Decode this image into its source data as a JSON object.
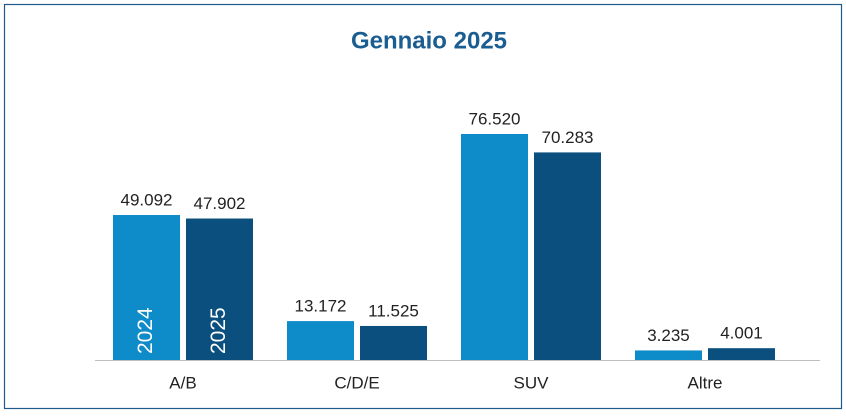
{
  "chart_data": {
    "type": "bar",
    "title": "Gennaio 2025",
    "categories": [
      "A/B",
      "C/D/E",
      "SUV",
      "Altre"
    ],
    "series": [
      {
        "name": "2024",
        "color": "#0e8bc9",
        "values": [
          49092,
          13172,
          76520,
          3235
        ],
        "value_labels": [
          "49.092",
          "13.172",
          "76.520",
          "3.235"
        ]
      },
      {
        "name": "2025",
        "color": "#0b4f7f",
        "values": [
          47902,
          11525,
          70283,
          4001
        ],
        "value_labels": [
          "47.902",
          "11.525",
          "70.283",
          "4.001"
        ]
      }
    ]
  }
}
